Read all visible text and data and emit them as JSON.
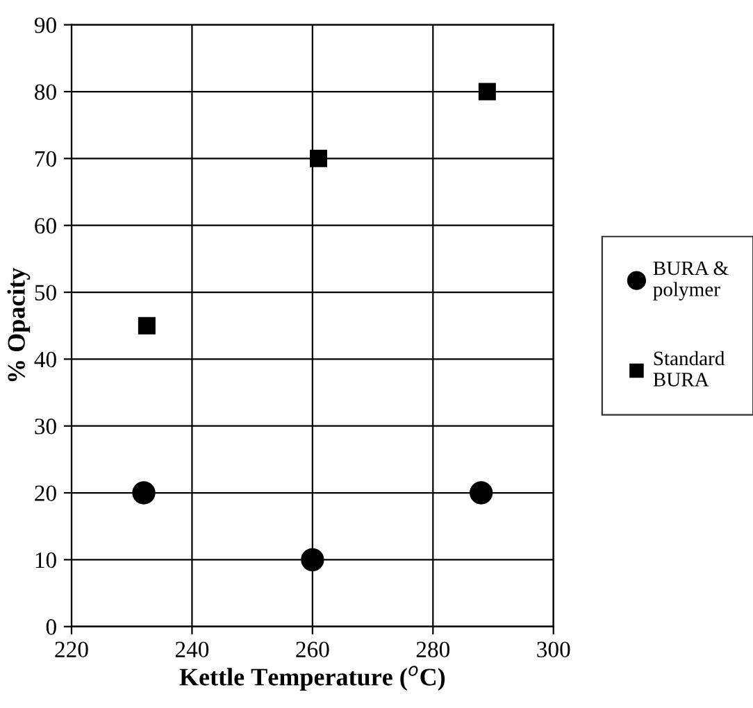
{
  "chart_data": {
    "type": "scatter",
    "xlabel": "Kettle Temperature ($^{o}$C)",
    "ylabel": "% Opacity",
    "xlim": [
      220,
      300
    ],
    "xticks": [
      220,
      240,
      260,
      280,
      300
    ],
    "ylim": [
      0,
      90
    ],
    "yticks": [
      0,
      10,
      20,
      30,
      40,
      50,
      60,
      70,
      80,
      90
    ],
    "grid": true,
    "legend": "right",
    "series": [
      {
        "name": "BURA &\npolymer",
        "color": "#000000",
        "marker": "circle",
        "x": [
          232,
          260,
          288
        ],
        "values": [
          20,
          10,
          20
        ]
      },
      {
        "name": "Standard\nBURA",
        "color": "#000000",
        "marker": "square",
        "x": [
          232.5,
          261,
          289
        ],
        "values": [
          45,
          70,
          80
        ]
      }
    ]
  }
}
